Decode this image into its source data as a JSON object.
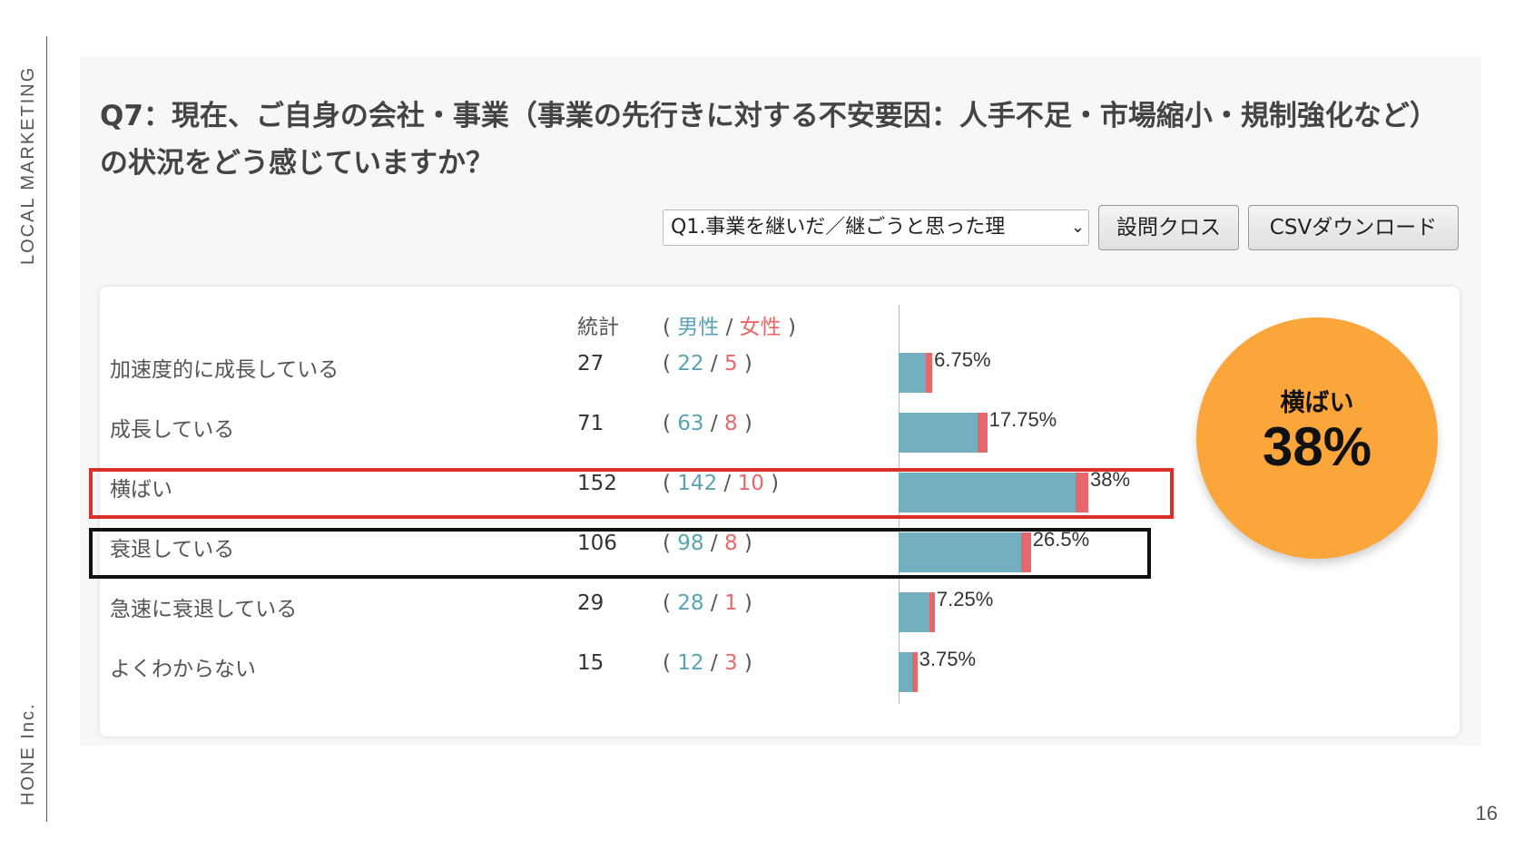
{
  "sidebar": {
    "brand_top": "LOCAL MARKETING",
    "brand_bottom": "HONE Inc."
  },
  "page_number": "16",
  "question": "Q7：現在、ご自身の会社・事業（事業の先行きに対する不安要因：人手不足・市場縮小・規制強化など）の状況をどう感じていますか？",
  "controls": {
    "select_value": "Q1.事業を継いだ／継ごうと思った理",
    "cross_label": "設問クロス",
    "csv_label": "CSVダウンロード"
  },
  "table_header": {
    "count_label": "統計",
    "open": "(",
    "male": "男性",
    "sep": "/",
    "female": "女性",
    "close": ")"
  },
  "colors": {
    "male": "#72b0c1",
    "female": "#e8676a",
    "highlight_red": "#d9302c",
    "badge": "#fba63a"
  },
  "chart_data": {
    "type": "bar",
    "orientation": "horizontal",
    "stacked": true,
    "categories": [
      "加速度的に成長している",
      "成長している",
      "横ばい",
      "衰退している",
      "急速に衰退している",
      "よくわからない"
    ],
    "totals": [
      27,
      71,
      152,
      106,
      29,
      15
    ],
    "percent_labels": [
      "6.75%",
      "17.75%",
      "38%",
      "26.5%",
      "7.25%",
      "3.75%"
    ],
    "percents": [
      6.75,
      17.75,
      38,
      26.5,
      7.25,
      3.75
    ],
    "series": [
      {
        "name": "男性",
        "values": [
          22,
          63,
          142,
          98,
          28,
          12
        ]
      },
      {
        "name": "女性",
        "values": [
          5,
          8,
          10,
          8,
          1,
          3
        ]
      }
    ],
    "highlighted": [
      "横ばい",
      "衰退している"
    ]
  },
  "badge": {
    "label": "横ばい",
    "value": "38%"
  }
}
